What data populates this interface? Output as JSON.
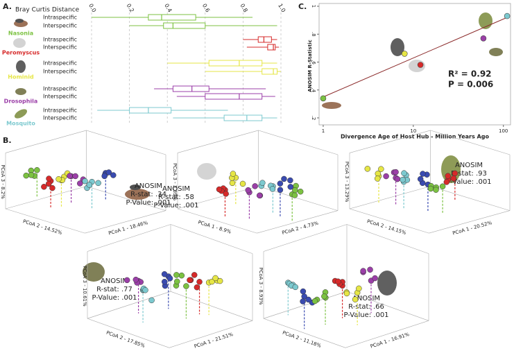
{
  "panel_labels": [
    "A.",
    "B.",
    "C."
  ],
  "chart_data": [
    {
      "type": "box",
      "axis_label": "Bray Curtis Distance",
      "xlim": [
        0,
        1
      ],
      "xticks": [
        {
          "value": 0,
          "label": "0.0"
        },
        0.2,
        0.4,
        0.6,
        0.8,
        {
          "value": 1,
          "label": "1.0"
        }
      ],
      "grid": true,
      "categories": [
        "Intraspecific",
        "Interspecific"
      ],
      "series": [
        {
          "name": "Nasonia",
          "color": "#7cc242",
          "values": [
            [
              0.0,
              0.3,
              0.37,
              0.55,
              0.85
            ],
            [
              0.2,
              0.38,
              0.43,
              0.6,
              0.98
            ]
          ]
        },
        {
          "name": "Peromyscus",
          "color": "#d62a2a",
          "values": [
            [
              0.8,
              0.88,
              0.91,
              0.95,
              0.98
            ],
            [
              0.82,
              0.93,
              0.96,
              0.97,
              0.99
            ]
          ]
        },
        {
          "name": "Hominid",
          "color": "#e6e645",
          "values": [
            [
              0.4,
              0.62,
              0.78,
              0.9,
              0.98
            ],
            [
              0.6,
              0.9,
              0.96,
              0.98,
              1.0
            ]
          ]
        },
        {
          "name": "Drosophila",
          "color": "#9b3fa8",
          "values": [
            [
              0.33,
              0.43,
              0.53,
              0.62,
              0.92
            ],
            [
              0.45,
              0.6,
              0.78,
              0.9,
              0.97
            ]
          ]
        },
        {
          "name": "Mosquito",
          "color": "#7cc9cf",
          "values": [
            [
              0.03,
              0.2,
              0.3,
              0.42,
              0.72
            ],
            [
              0.43,
              0.7,
              0.82,
              0.9,
              0.98
            ]
          ]
        }
      ]
    },
    {
      "type": "scatter",
      "xlabel": "Divergence Age of Host Hub - Million Years Ago",
      "ylabel": "ANOSIM R-Statistic",
      "xscale": "log",
      "xlim": [
        0.9,
        120
      ],
      "xticks": [
        1,
        10,
        100
      ],
      "ylim": [
        0.15,
        1.02
      ],
      "yticks": [
        {
          "value": 0.2,
          "label": ".2"
        },
        {
          "value": 0.4,
          "label": ".4"
        },
        {
          "value": 0.6,
          "label": ".6"
        },
        {
          "value": 0.8,
          "label": ".8"
        },
        1
      ],
      "x": [
        1,
        12,
        8,
        60,
        110
      ],
      "values": [
        0.34,
        0.58,
        0.66,
        0.77,
        0.93
      ],
      "colors": [
        "#7cc242",
        "#d62a2a",
        "#e6e645",
        "#9b3fa8",
        "#7cc9cf"
      ],
      "fit_line": {
        "color": "#8b2a2a",
        "x": [
          1,
          110
        ],
        "values": [
          0.35,
          0.92
        ]
      },
      "annotations": [
        "R² = 0.92",
        "P = 0.006"
      ]
    }
  ],
  "pcoa_plots": [
    {
      "axes": [
        "PCoA 3 - 8.2%",
        "PCoA 2 - 14.52%",
        "PCoA 1 - 18.46%"
      ],
      "anosim": [
        "ANOSIM",
        "R-stat: .34",
        "P-Value: .001"
      ]
    },
    {
      "axes": [
        "PCoA 3 - 3.89%",
        "PCoA 1 - 8.9%",
        "PCoA 2 - 4.73%"
      ],
      "anosim": [
        "ANOSIM",
        "R-stat: .58",
        "P-Value: .001"
      ]
    },
    {
      "axes": [
        "PCoA 3 - 13.29%",
        "PCoA 2 - 14.15%",
        "PCoA 1 - 20.52%"
      ],
      "anosim": [
        "ANOSIM",
        "R-stat: .93",
        "P-Value: .001"
      ]
    },
    {
      "axes": [
        "PCoA 3 - 10.61%",
        "PCoA 2 - 17.85%",
        "PCoA 1 - 21.51%"
      ],
      "anosim": [
        "ANOSIM",
        "R-stat: .77",
        "P-Value: .001"
      ]
    },
    {
      "axes": [
        "PCoA 3 - 8.93%",
        "PCoA 2 - 11.18%",
        "PCoA 1 - 16.91%"
      ],
      "anosim": [
        "ANOSIM",
        "R-stat: .66",
        "P-Value: .001"
      ]
    }
  ]
}
